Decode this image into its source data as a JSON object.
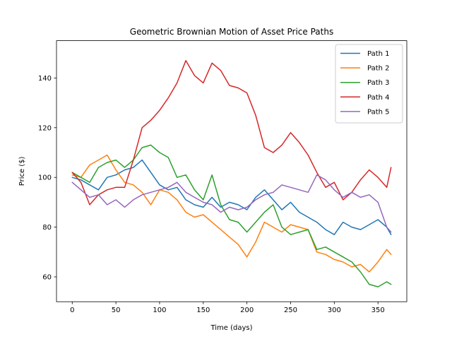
{
  "chart_data": {
    "type": "line",
    "title": "Geometric Brownian Motion of Asset Price Paths",
    "xlabel": "Time (days)",
    "ylabel": "Price ($)",
    "xlim": [
      -18,
      383
    ],
    "ylim": [
      50,
      155
    ],
    "xticks": [
      0,
      50,
      100,
      150,
      200,
      250,
      300,
      350
    ],
    "yticks": [
      60,
      80,
      100,
      120,
      140
    ],
    "grid": false,
    "legend_position": "top-right",
    "series": [
      {
        "name": "Path 1",
        "color": "#1f77b4",
        "points": [
          [
            0,
            100
          ],
          [
            10,
            99
          ],
          [
            20,
            97
          ],
          [
            30,
            95
          ],
          [
            40,
            100
          ],
          [
            50,
            101
          ],
          [
            60,
            103
          ],
          [
            70,
            104
          ],
          [
            80,
            107
          ],
          [
            90,
            102
          ],
          [
            100,
            97
          ],
          [
            110,
            95
          ],
          [
            120,
            96
          ],
          [
            130,
            91
          ],
          [
            140,
            89
          ],
          [
            150,
            88
          ],
          [
            160,
            92
          ],
          [
            170,
            88
          ],
          [
            180,
            90
          ],
          [
            190,
            89
          ],
          [
            200,
            87
          ],
          [
            210,
            92
          ],
          [
            220,
            95
          ],
          [
            230,
            91
          ],
          [
            240,
            87
          ],
          [
            250,
            90
          ],
          [
            260,
            86
          ],
          [
            270,
            84
          ],
          [
            280,
            82
          ],
          [
            290,
            79
          ],
          [
            300,
            77
          ],
          [
            310,
            82
          ],
          [
            320,
            80
          ],
          [
            330,
            79
          ],
          [
            340,
            81
          ],
          [
            350,
            83
          ],
          [
            360,
            80
          ],
          [
            365,
            77
          ]
        ]
      },
      {
        "name": "Path 2",
        "color": "#ff7f0e",
        "points": [
          [
            0,
            101
          ],
          [
            10,
            100
          ],
          [
            20,
            105
          ],
          [
            30,
            107
          ],
          [
            40,
            109
          ],
          [
            50,
            103
          ],
          [
            60,
            98
          ],
          [
            70,
            97
          ],
          [
            80,
            94
          ],
          [
            90,
            89
          ],
          [
            100,
            95
          ],
          [
            110,
            94
          ],
          [
            120,
            91
          ],
          [
            130,
            86
          ],
          [
            140,
            84
          ],
          [
            150,
            85
          ],
          [
            160,
            82
          ],
          [
            170,
            79
          ],
          [
            180,
            76
          ],
          [
            190,
            73
          ],
          [
            200,
            68
          ],
          [
            210,
            74
          ],
          [
            220,
            82
          ],
          [
            230,
            80
          ],
          [
            240,
            78
          ],
          [
            250,
            81
          ],
          [
            260,
            80
          ],
          [
            270,
            79
          ],
          [
            280,
            70
          ],
          [
            290,
            69
          ],
          [
            300,
            67
          ],
          [
            310,
            66
          ],
          [
            320,
            64
          ],
          [
            330,
            65
          ],
          [
            340,
            62
          ],
          [
            350,
            66
          ],
          [
            360,
            71
          ],
          [
            365,
            69
          ]
        ]
      },
      {
        "name": "Path 3",
        "color": "#2ca02c",
        "points": [
          [
            0,
            102
          ],
          [
            10,
            100
          ],
          [
            20,
            98
          ],
          [
            30,
            104
          ],
          [
            40,
            106
          ],
          [
            50,
            107
          ],
          [
            60,
            104
          ],
          [
            70,
            107
          ],
          [
            80,
            112
          ],
          [
            90,
            113
          ],
          [
            100,
            110
          ],
          [
            110,
            108
          ],
          [
            120,
            100
          ],
          [
            130,
            101
          ],
          [
            140,
            95
          ],
          [
            150,
            91
          ],
          [
            160,
            101
          ],
          [
            170,
            89
          ],
          [
            180,
            83
          ],
          [
            190,
            82
          ],
          [
            200,
            78
          ],
          [
            210,
            82
          ],
          [
            220,
            86
          ],
          [
            230,
            89
          ],
          [
            240,
            80
          ],
          [
            250,
            77
          ],
          [
            260,
            78
          ],
          [
            270,
            79
          ],
          [
            280,
            71
          ],
          [
            290,
            72
          ],
          [
            300,
            70
          ],
          [
            310,
            68
          ],
          [
            320,
            66
          ],
          [
            330,
            62
          ],
          [
            340,
            57
          ],
          [
            350,
            56
          ],
          [
            360,
            58
          ],
          [
            365,
            57
          ]
        ]
      },
      {
        "name": "Path 4",
        "color": "#d62728",
        "points": [
          [
            0,
            102
          ],
          [
            10,
            98
          ],
          [
            20,
            89
          ],
          [
            30,
            93
          ],
          [
            40,
            95
          ],
          [
            50,
            96
          ],
          [
            60,
            96
          ],
          [
            70,
            107
          ],
          [
            80,
            120
          ],
          [
            90,
            123
          ],
          [
            100,
            127
          ],
          [
            110,
            132
          ],
          [
            120,
            138
          ],
          [
            130,
            147
          ],
          [
            140,
            141
          ],
          [
            150,
            138
          ],
          [
            160,
            146
          ],
          [
            170,
            143
          ],
          [
            180,
            137
          ],
          [
            190,
            136
          ],
          [
            200,
            134
          ],
          [
            210,
            125
          ],
          [
            220,
            112
          ],
          [
            230,
            110
          ],
          [
            240,
            113
          ],
          [
            250,
            118
          ],
          [
            260,
            114
          ],
          [
            270,
            109
          ],
          [
            280,
            102
          ],
          [
            290,
            96
          ],
          [
            300,
            98
          ],
          [
            310,
            91
          ],
          [
            320,
            94
          ],
          [
            330,
            99
          ],
          [
            340,
            103
          ],
          [
            350,
            100
          ],
          [
            360,
            96
          ],
          [
            365,
            104
          ]
        ]
      },
      {
        "name": "Path 5",
        "color": "#9467bd",
        "points": [
          [
            0,
            98
          ],
          [
            10,
            95
          ],
          [
            20,
            92
          ],
          [
            30,
            93
          ],
          [
            40,
            89
          ],
          [
            50,
            91
          ],
          [
            60,
            88
          ],
          [
            70,
            91
          ],
          [
            80,
            93
          ],
          [
            90,
            94
          ],
          [
            100,
            95
          ],
          [
            110,
            96
          ],
          [
            120,
            98
          ],
          [
            130,
            94
          ],
          [
            140,
            92
          ],
          [
            150,
            90
          ],
          [
            160,
            89
          ],
          [
            170,
            86
          ],
          [
            180,
            88
          ],
          [
            190,
            87
          ],
          [
            200,
            88
          ],
          [
            210,
            91
          ],
          [
            220,
            93
          ],
          [
            230,
            94
          ],
          [
            240,
            97
          ],
          [
            250,
            96
          ],
          [
            260,
            95
          ],
          [
            270,
            94
          ],
          [
            280,
            101
          ],
          [
            290,
            99
          ],
          [
            300,
            95
          ],
          [
            310,
            92
          ],
          [
            320,
            94
          ],
          [
            330,
            92
          ],
          [
            340,
            93
          ],
          [
            350,
            90
          ],
          [
            360,
            80
          ],
          [
            365,
            78
          ]
        ]
      }
    ]
  }
}
